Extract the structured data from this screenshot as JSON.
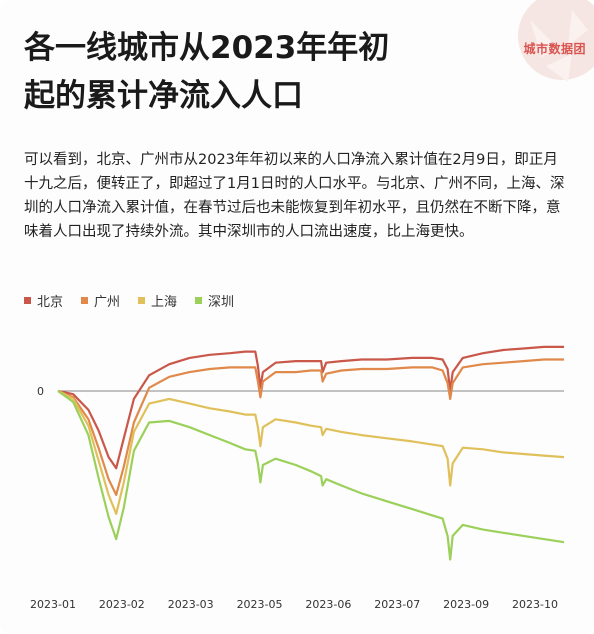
{
  "brand": {
    "name": "城市数据团",
    "color": "#d9534f"
  },
  "header": {
    "title_line1": "各一线城市从2023年年初",
    "title_line2": "起的累计净流入人口"
  },
  "description": "可以看到，北京、广州市从2023年年初以来的人口净流入累计值在2月9日，即正月十九之后，便转正了，即超过了1月1日时的人口水平。与北京、广州不同，上海、深圳的人口净流入累计值，在春节过后也未能恢复到年初水平，且仍然在不断下降，意味着人口出现了持续外流。其中深圳市的人口流出速度，比上海更快。",
  "chart_data": {
    "type": "line",
    "title": "",
    "xlabel": "",
    "ylabel": "",
    "x_tick_labels": [
      "2023-01",
      "2023-02",
      "2023-03",
      "2023-05",
      "2023-06",
      "2023-07",
      "2023-09",
      "2023-10"
    ],
    "y_tick_labels": [
      "0"
    ],
    "ylim": [
      -12,
      4
    ],
    "grid": false,
    "legend_position": "top-left",
    "series": [
      {
        "name": "北京",
        "color": "#c9574a",
        "points": [
          [
            0,
            0
          ],
          [
            0.03,
            -0.2
          ],
          [
            0.06,
            -1.2
          ],
          [
            0.08,
            -2.5
          ],
          [
            0.1,
            -4.2
          ],
          [
            0.115,
            -4.9
          ],
          [
            0.13,
            -3.0
          ],
          [
            0.15,
            -0.5
          ],
          [
            0.18,
            1.0
          ],
          [
            0.22,
            1.7
          ],
          [
            0.26,
            2.1
          ],
          [
            0.3,
            2.3
          ],
          [
            0.34,
            2.4
          ],
          [
            0.37,
            2.5
          ],
          [
            0.39,
            2.5
          ],
          [
            0.395,
            1.6
          ],
          [
            0.4,
            0.2
          ],
          [
            0.405,
            1.2
          ],
          [
            0.43,
            1.8
          ],
          [
            0.47,
            1.9
          ],
          [
            0.5,
            1.9
          ],
          [
            0.52,
            1.9
          ],
          [
            0.523,
            1.2
          ],
          [
            0.53,
            1.8
          ],
          [
            0.56,
            1.9
          ],
          [
            0.6,
            2.0
          ],
          [
            0.65,
            2.0
          ],
          [
            0.7,
            2.1
          ],
          [
            0.74,
            2.1
          ],
          [
            0.76,
            2.0
          ],
          [
            0.77,
            1.4
          ],
          [
            0.775,
            0.0
          ],
          [
            0.78,
            1.2
          ],
          [
            0.8,
            2.1
          ],
          [
            0.84,
            2.4
          ],
          [
            0.88,
            2.6
          ],
          [
            0.92,
            2.7
          ],
          [
            0.96,
            2.8
          ],
          [
            1.0,
            2.8
          ]
        ]
      },
      {
        "name": "广州",
        "color": "#e0894a",
        "points": [
          [
            0,
            0
          ],
          [
            0.03,
            -0.4
          ],
          [
            0.06,
            -1.8
          ],
          [
            0.08,
            -3.6
          ],
          [
            0.1,
            -5.6
          ],
          [
            0.115,
            -6.6
          ],
          [
            0.13,
            -4.8
          ],
          [
            0.15,
            -2.0
          ],
          [
            0.18,
            0.2
          ],
          [
            0.22,
            0.9
          ],
          [
            0.26,
            1.2
          ],
          [
            0.3,
            1.4
          ],
          [
            0.34,
            1.5
          ],
          [
            0.37,
            1.5
          ],
          [
            0.39,
            1.5
          ],
          [
            0.395,
            0.6
          ],
          [
            0.4,
            -0.4
          ],
          [
            0.405,
            0.6
          ],
          [
            0.43,
            1.2
          ],
          [
            0.47,
            1.2
          ],
          [
            0.5,
            1.3
          ],
          [
            0.52,
            1.3
          ],
          [
            0.523,
            0.6
          ],
          [
            0.53,
            1.1
          ],
          [
            0.56,
            1.3
          ],
          [
            0.6,
            1.4
          ],
          [
            0.65,
            1.4
          ],
          [
            0.7,
            1.5
          ],
          [
            0.74,
            1.5
          ],
          [
            0.76,
            1.3
          ],
          [
            0.77,
            0.5
          ],
          [
            0.775,
            -0.5
          ],
          [
            0.78,
            0.5
          ],
          [
            0.8,
            1.5
          ],
          [
            0.84,
            1.7
          ],
          [
            0.88,
            1.8
          ],
          [
            0.92,
            1.9
          ],
          [
            0.96,
            2.0
          ],
          [
            1.0,
            2.0
          ]
        ]
      },
      {
        "name": "上海",
        "color": "#e0c05a",
        "points": [
          [
            0,
            0
          ],
          [
            0.03,
            -0.5
          ],
          [
            0.06,
            -2.2
          ],
          [
            0.08,
            -4.4
          ],
          [
            0.1,
            -6.6
          ],
          [
            0.115,
            -7.8
          ],
          [
            0.13,
            -5.8
          ],
          [
            0.15,
            -2.6
          ],
          [
            0.18,
            -0.8
          ],
          [
            0.22,
            -0.5
          ],
          [
            0.26,
            -0.8
          ],
          [
            0.3,
            -1.1
          ],
          [
            0.34,
            -1.3
          ],
          [
            0.37,
            -1.5
          ],
          [
            0.39,
            -1.5
          ],
          [
            0.395,
            -2.3
          ],
          [
            0.4,
            -3.5
          ],
          [
            0.405,
            -2.3
          ],
          [
            0.43,
            -1.8
          ],
          [
            0.47,
            -2.0
          ],
          [
            0.5,
            -2.2
          ],
          [
            0.52,
            -2.3
          ],
          [
            0.523,
            -2.8
          ],
          [
            0.53,
            -2.4
          ],
          [
            0.56,
            -2.6
          ],
          [
            0.6,
            -2.8
          ],
          [
            0.65,
            -3.0
          ],
          [
            0.7,
            -3.2
          ],
          [
            0.74,
            -3.4
          ],
          [
            0.76,
            -3.5
          ],
          [
            0.77,
            -4.3
          ],
          [
            0.775,
            -6.0
          ],
          [
            0.78,
            -4.6
          ],
          [
            0.8,
            -3.6
          ],
          [
            0.84,
            -3.7
          ],
          [
            0.88,
            -3.9
          ],
          [
            0.92,
            -4.0
          ],
          [
            0.96,
            -4.1
          ],
          [
            1.0,
            -4.2
          ]
        ]
      },
      {
        "name": "深圳",
        "color": "#9bd05a",
        "points": [
          [
            0,
            0
          ],
          [
            0.03,
            -0.7
          ],
          [
            0.06,
            -2.8
          ],
          [
            0.08,
            -5.5
          ],
          [
            0.1,
            -8.0
          ],
          [
            0.115,
            -9.4
          ],
          [
            0.13,
            -7.4
          ],
          [
            0.15,
            -3.8
          ],
          [
            0.18,
            -2.0
          ],
          [
            0.22,
            -1.9
          ],
          [
            0.26,
            -2.3
          ],
          [
            0.3,
            -2.8
          ],
          [
            0.34,
            -3.3
          ],
          [
            0.37,
            -3.7
          ],
          [
            0.39,
            -3.8
          ],
          [
            0.395,
            -4.6
          ],
          [
            0.4,
            -5.8
          ],
          [
            0.405,
            -4.7
          ],
          [
            0.43,
            -4.3
          ],
          [
            0.47,
            -4.7
          ],
          [
            0.5,
            -5.1
          ],
          [
            0.52,
            -5.4
          ],
          [
            0.523,
            -6.0
          ],
          [
            0.53,
            -5.6
          ],
          [
            0.56,
            -6.0
          ],
          [
            0.6,
            -6.5
          ],
          [
            0.65,
            -7.0
          ],
          [
            0.7,
            -7.5
          ],
          [
            0.74,
            -7.9
          ],
          [
            0.76,
            -8.1
          ],
          [
            0.77,
            -9.2
          ],
          [
            0.775,
            -10.7
          ],
          [
            0.78,
            -9.2
          ],
          [
            0.8,
            -8.5
          ],
          [
            0.84,
            -8.8
          ],
          [
            0.88,
            -9.0
          ],
          [
            0.92,
            -9.2
          ],
          [
            0.96,
            -9.4
          ],
          [
            1.0,
            -9.6
          ]
        ]
      }
    ]
  }
}
